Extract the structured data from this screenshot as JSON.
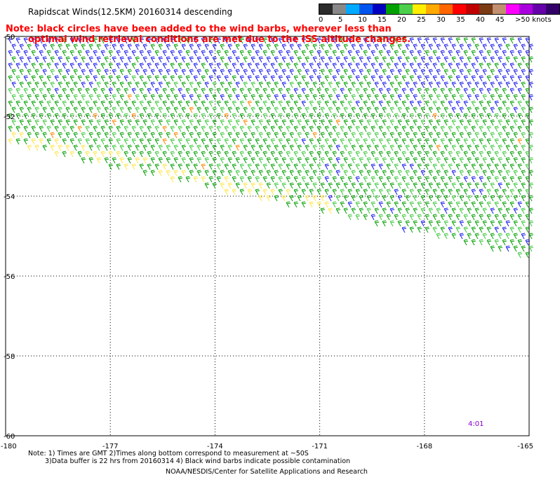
{
  "title": "Rapidscat Winds(12.5KM) 20160314 descending",
  "note_lines": [
    "Note: black circles have been added to the wind barbs, wherever less than",
    "optimal wind retrieval conditions are met due to the ISS altitude changes."
  ],
  "colorbar": {
    "colors": [
      "#2b2b2b",
      "#888888",
      "#00aaff",
      "#0055ee",
      "#0000c0",
      "#00a000",
      "#4cd04c",
      "#ffee00",
      "#ffaa00",
      "#ff6600",
      "#ff0000",
      "#c00000",
      "#7a3b14",
      "#c09070",
      "#ff00ff",
      "#aa00dd",
      "#6600aa",
      "#33006a"
    ],
    "labels": [
      "0",
      "5",
      "10",
      "15",
      "20",
      "25",
      "30",
      "35",
      "40",
      "45",
      ">50 knots"
    ]
  },
  "map": {
    "lon_ticks": [
      "-180",
      "-177",
      "-174",
      "-171",
      "-168",
      "-165"
    ],
    "lat_ticks": [
      "-50",
      "-52",
      "-54",
      "-56",
      "-58",
      "-60"
    ],
    "barb_colors": {
      "low_blue": "#1a1aee",
      "mid_green": "#00a000",
      "light_green": "#3cc83c",
      "yellow": "#ffe64a",
      "orange": "#ff8800"
    }
  },
  "timestamp": "4:01",
  "footnote_lines": [
    "Note: 1) Times are GMT 2)Times along bottom correspond to measurement at ~50S",
    "3)Data buffer is 22 hrs from 20160314 4) Black wind barbs indicate possible contamination"
  ],
  "credit": "NOAA/NESDIS/Center for Satellite Applications and Research"
}
